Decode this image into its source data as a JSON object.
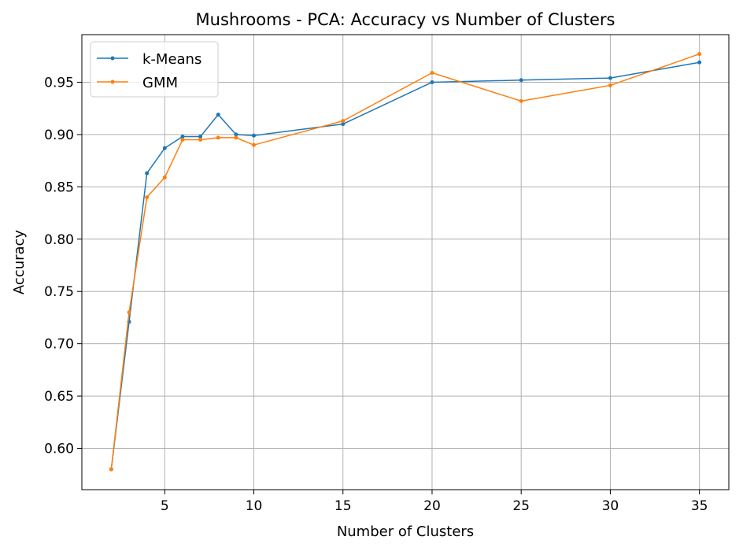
{
  "chart_data": {
    "type": "line",
    "title": "Mushrooms - PCA: Accuracy vs Number of Clusters",
    "xlabel": "Number of Clusters",
    "ylabel": "Accuracy",
    "xlim": [
      0.35,
      36.65
    ],
    "ylim": [
      0.5605,
      0.9955
    ],
    "xticks": [
      5,
      10,
      15,
      20,
      25,
      30,
      35
    ],
    "xtick_labels": [
      "5",
      "10",
      "15",
      "20",
      "25",
      "30",
      "35"
    ],
    "yticks": [
      0.6,
      0.65,
      0.7,
      0.75,
      0.8,
      0.85,
      0.9,
      0.95
    ],
    "ytick_labels": [
      "0.60",
      "0.65",
      "0.70",
      "0.75",
      "0.80",
      "0.85",
      "0.90",
      "0.95"
    ],
    "grid": true,
    "legend_position": "top-left",
    "x": [
      2,
      3,
      4,
      5,
      6,
      7,
      8,
      9,
      10,
      15,
      20,
      25,
      30,
      35
    ],
    "series": [
      {
        "name": "k-Means",
        "color": "#1f77b4",
        "values": [
          0.58,
          0.721,
          0.863,
          0.887,
          0.898,
          0.898,
          0.919,
          0.9,
          0.899,
          0.91,
          0.95,
          0.952,
          0.954,
          0.969
        ]
      },
      {
        "name": "GMM",
        "color": "#ff7f0e",
        "values": [
          0.58,
          0.73,
          0.84,
          0.859,
          0.895,
          0.895,
          0.897,
          0.897,
          0.89,
          0.913,
          0.959,
          0.932,
          0.947,
          0.977
        ]
      }
    ]
  }
}
